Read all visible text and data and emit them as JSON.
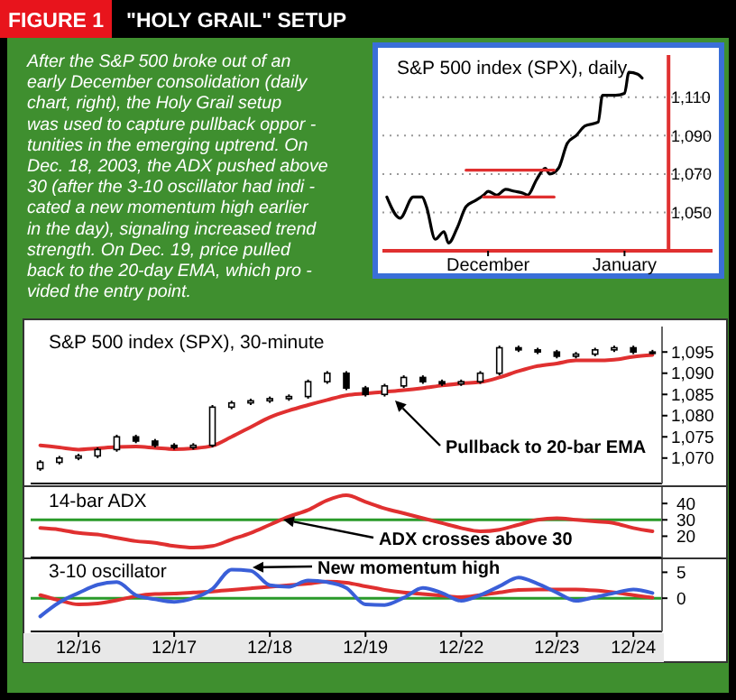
{
  "chart_data": [
    {
      "type": "other",
      "title": "FIGURE 1",
      "subtitle": "\"HOLY GRAIL\" SETUP",
      "annotations": [
        "After the S&P 500 broke out of an",
        "early December consolidation (daily",
        "chart, right), the Holy Grail setup",
        "was used to capture pullback oppor -",
        "tunities in the emerging uptrend. On",
        "Dec. 18, 2003, the ADX pushed above",
        "30 (after the 3-10 oscillator had indi -",
        "cated a new momentum high earlier",
        "in the day), signaling increased trend",
        "strength. On Dec. 19, price pulled",
        "back to the 20-day EMA, which pro -",
        "vided the entry point."
      ]
    },
    {
      "type": "line",
      "title": "S&P 500 index (SPX), daily",
      "xlim": [
        "2003-11-07",
        "2004-01-21"
      ],
      "xticks": [
        {
          "value": "2003-12-01",
          "label": "December"
        },
        {
          "value": "2004-01-01",
          "label": "January"
        }
      ],
      "ylim": [
        1030,
        1132
      ],
      "yticks": [
        {
          "value": 1050,
          "label": "1,050"
        },
        {
          "value": 1070,
          "label": "1,070"
        },
        {
          "value": 1090,
          "label": "1,090"
        },
        {
          "value": 1110,
          "label": "1,110"
        }
      ],
      "grid": "y",
      "ref_lines": [
        {
          "axis": "x",
          "value": "2004-01-11",
          "color": "#e03030"
        }
      ],
      "series": [
        {
          "color": "#000000",
          "x": [
            "2003-11-08",
            "2003-11-11",
            "2003-11-14",
            "2003-11-16",
            "2003-11-17",
            "2003-11-19",
            "2003-11-21",
            "2003-11-22",
            "2003-11-24",
            "2003-11-26",
            "2003-11-28",
            "2003-11-30",
            "2003-12-01",
            "2003-12-03",
            "2003-12-05",
            "2003-12-07",
            "2003-12-09",
            "2003-12-10",
            "2003-12-12",
            "2003-12-14",
            "2003-12-15",
            "2003-12-17",
            "2003-12-19",
            "2003-12-21",
            "2003-12-23",
            "2003-12-26",
            "2003-12-27",
            "2003-12-30",
            "2004-01-01",
            "2004-01-02",
            "2004-01-04",
            "2004-01-05"
          ],
          "values": [
            1058,
            1047,
            1058,
            1058,
            1053,
            1036,
            1040,
            1034,
            1042,
            1053,
            1056,
            1059,
            1061,
            1059,
            1062,
            1061,
            1060,
            1059,
            1067,
            1073,
            1070,
            1073,
            1086,
            1090,
            1095,
            1097,
            1111,
            1111,
            1112,
            1123,
            1122,
            1120
          ]
        },
        {
          "color": "#e03030",
          "x": [
            "2003-11-26",
            "2003-12-16"
          ],
          "values": [
            1072,
            1072
          ]
        },
        {
          "color": "#e03030",
          "x": [
            "2003-11-30",
            "2003-12-16"
          ],
          "values": [
            1058,
            1058
          ]
        }
      ]
    },
    {
      "type": "candlestick",
      "title": "S&P 500 index (SPX), 30-minute",
      "color": "#000000",
      "tick_labels": "y",
      "categories": [
        null,
        null,
        null,
        null,
        null,
        null,
        null,
        null,
        null,
        null,
        null,
        null,
        null,
        null,
        null,
        null,
        null,
        null,
        null,
        null,
        null,
        null,
        null,
        null,
        null,
        null,
        null,
        null,
        null,
        null,
        null,
        null,
        null
      ],
      "ylim": [
        1064,
        1101
      ],
      "yticks": [
        {
          "value": 1070,
          "label": "1,070"
        },
        {
          "value": 1075,
          "label": "1,075"
        },
        {
          "value": 1080,
          "label": "1,080"
        },
        {
          "value": 1085,
          "label": "1,085"
        },
        {
          "value": 1090,
          "label": "1,090"
        },
        {
          "value": 1095,
          "label": "1,095"
        }
      ],
      "ohlc": [
        [
          1067.5,
          1069.5,
          1067,
          1069
        ],
        [
          1069,
          1070.5,
          1068.5,
          1070
        ],
        [
          1070,
          1071,
          1069.5,
          1070.5
        ],
        [
          1070.5,
          1072.5,
          1070,
          1072
        ],
        [
          1072,
          1075.5,
          1071.5,
          1075
        ],
        [
          1075,
          1075.5,
          1073.5,
          1074
        ],
        [
          1074,
          1074.5,
          1072.5,
          1073
        ],
        [
          1073,
          1073.5,
          1072,
          1072.5
        ],
        [
          1072.5,
          1073.5,
          1072,
          1073
        ],
        [
          1073,
          1082.5,
          1072.5,
          1082
        ],
        [
          1082,
          1083.5,
          1081.5,
          1083
        ],
        [
          1083,
          1084,
          1082.5,
          1083.5
        ],
        [
          1083.5,
          1084.5,
          1083,
          1084
        ],
        [
          1084,
          1085,
          1083.5,
          1084.5
        ],
        [
          1084.5,
          1088.5,
          1084,
          1088
        ],
        [
          1088,
          1090.5,
          1087.5,
          1090
        ],
        [
          1090,
          1090.5,
          1086,
          1086.5
        ],
        [
          1086.5,
          1087,
          1084.5,
          1085
        ],
        [
          1085,
          1087.5,
          1084.5,
          1087
        ],
        [
          1087,
          1089.5,
          1086.5,
          1089
        ],
        [
          1089,
          1089.5,
          1087.5,
          1088
        ],
        [
          1088,
          1088.5,
          1087,
          1087.5
        ],
        [
          1087.5,
          1088.5,
          1087,
          1088
        ],
        [
          1088,
          1090.5,
          1087.5,
          1090
        ],
        [
          1090,
          1096.5,
          1089.5,
          1096
        ],
        [
          1096,
          1096.5,
          1095,
          1095.5
        ],
        [
          1095.5,
          1096,
          1094.5,
          1095
        ],
        [
          1095,
          1095.5,
          1093.5,
          1094
        ],
        [
          1094,
          1095,
          1093.5,
          1094.5
        ],
        [
          1094.5,
          1096,
          1094,
          1095.5
        ],
        [
          1095.5,
          1096.5,
          1095,
          1096
        ],
        [
          1096,
          1096.5,
          1094.5,
          1095
        ],
        [
          1095,
          1095.5,
          1094.5,
          1095
        ]
      ],
      "series": [
        {
          "type": "line",
          "color": "#e03030",
          "values": [
            1073,
            1072.5,
            1072,
            1072.3,
            1072.6,
            1072.7,
            1072.4,
            1072.1,
            1072.3,
            1072.9,
            1075,
            1077.3,
            1079.6,
            1081.2,
            1082.5,
            1083.7,
            1084.8,
            1085.2,
            1085.6,
            1086,
            1086.5,
            1087.1,
            1087.6,
            1087.9,
            1089,
            1090.5,
            1091.7,
            1092.3,
            1093,
            1093,
            1093.2,
            1093.9,
            1094.3
          ]
        }
      ],
      "annotations": [
        "Pullback to 20-bar EMA"
      ]
    },
    {
      "type": "line",
      "title": "14-bar ADX",
      "tick_labels": "y",
      "categories": [
        null,
        null,
        null,
        null,
        null,
        null,
        null,
        null,
        null,
        null,
        null,
        null,
        null,
        null,
        null,
        null,
        null,
        null,
        null,
        null,
        null,
        null,
        null,
        null,
        null,
        null,
        null,
        null,
        null,
        null,
        null,
        null,
        null
      ],
      "ylim": [
        7,
        50
      ],
      "yticks": [
        20,
        30,
        40
      ],
      "ref_lines": [
        {
          "axis": "y",
          "value": 30,
          "color": "#2a9a2a"
        }
      ],
      "series": [
        {
          "color": "#e03030",
          "values": [
            25,
            24,
            22,
            21,
            19,
            17,
            16,
            14,
            13,
            14,
            18,
            22,
            27,
            32,
            36,
            42,
            45,
            41,
            37,
            34,
            31,
            28,
            25,
            23,
            24,
            27,
            30,
            31,
            30,
            29,
            28,
            25,
            23
          ]
        }
      ],
      "annotations": [
        "ADX crosses above 30"
      ]
    },
    {
      "type": "line",
      "title": "3-10 oscillator",
      "categories": [
        null,
        null,
        "12/16",
        null,
        null,
        null,
        null,
        "12/17",
        null,
        null,
        null,
        null,
        "12/18",
        null,
        null,
        null,
        null,
        "12/19",
        null,
        null,
        null,
        null,
        "12/22",
        null,
        null,
        null,
        null,
        "12/23",
        null,
        null,
        null,
        "12/24",
        null
      ],
      "ylim": [
        -6.4,
        7.5
      ],
      "yticks": [
        0,
        5
      ],
      "ref_lines": [
        {
          "axis": "y",
          "value": 0,
          "color": "#2a9a2a"
        }
      ],
      "series": [
        {
          "color": "#e03030",
          "values": [
            0.6,
            -0.4,
            -1.2,
            -1,
            -0.4,
            0.4,
            0.8,
            0.9,
            1.1,
            1.3,
            1.6,
            1.9,
            2.2,
            2.5,
            2.8,
            3.2,
            3,
            2.3,
            1.6,
            1.1,
            0.8,
            0.5,
            0.2,
            0.6,
            1.1,
            1.6,
            1.7,
            1.7,
            1.7,
            1.5,
            1.1,
            0.6,
            0.1
          ]
        },
        {
          "color": "#3a5fd8",
          "values": [
            -3.5,
            -0.8,
            1,
            2.6,
            3.1,
            0.6,
            -0.2,
            -0.7,
            0,
            1.8,
            5.5,
            5.3,
            2.5,
            2.2,
            3.4,
            3.1,
            2,
            -1.2,
            -1.3,
            0.1,
            2,
            1,
            -0.5,
            0.6,
            2.3,
            4,
            2.8,
            1.1,
            -0.5,
            0.2,
            1,
            1.7,
            1
          ]
        }
      ],
      "annotations": [
        "New momentum high"
      ]
    }
  ]
}
